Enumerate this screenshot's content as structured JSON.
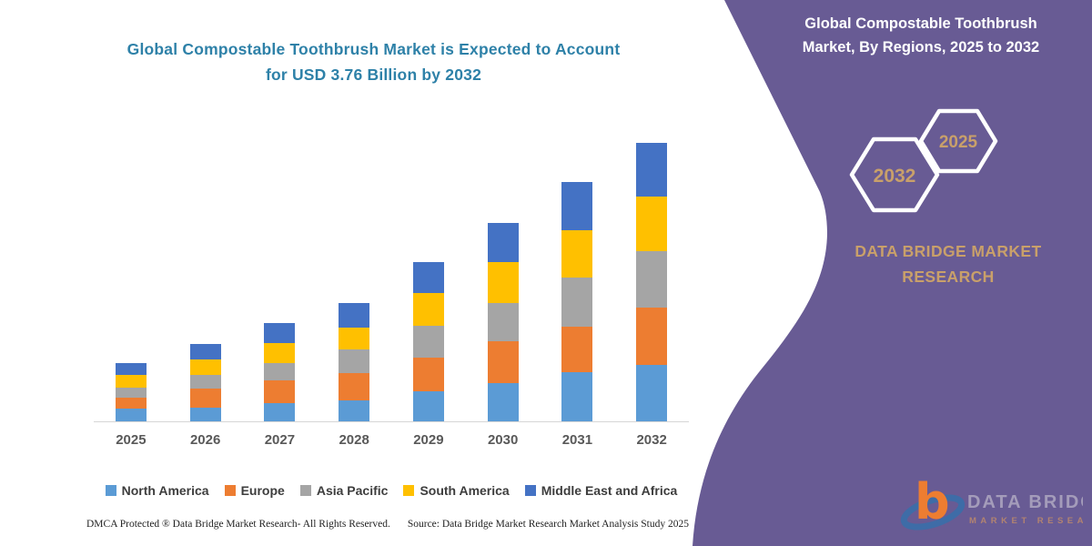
{
  "main_title": {
    "line1": "Global Compostable Toothbrush Market is Expected to Account",
    "line2": "for USD 3.76 Billion by 2032"
  },
  "chart_data": {
    "type": "bar",
    "stacked": true,
    "title": "Global Compostable Toothbrush Market, By Regions, 2025 to 2032",
    "unit": "USD Billion",
    "categories": [
      "2025",
      "2026",
      "2027",
      "2028",
      "2029",
      "2030",
      "2031",
      "2032"
    ],
    "series": [
      {
        "name": "North America",
        "color": "#5B9BD5",
        "values": [
          0.17,
          0.18,
          0.25,
          0.28,
          0.41,
          0.52,
          0.66,
          0.76
        ]
      },
      {
        "name": "Europe",
        "color": "#ED7D31",
        "values": [
          0.15,
          0.26,
          0.3,
          0.37,
          0.45,
          0.56,
          0.62,
          0.77
        ]
      },
      {
        "name": "Asia Pacific",
        "color": "#A5A5A5",
        "values": [
          0.13,
          0.19,
          0.24,
          0.32,
          0.43,
          0.51,
          0.66,
          0.76
        ]
      },
      {
        "name": "South America",
        "color": "#FFC000",
        "values": [
          0.18,
          0.2,
          0.26,
          0.29,
          0.44,
          0.56,
          0.64,
          0.74
        ]
      },
      {
        "name": "Middle East and Africa",
        "color": "#4472C4",
        "values": [
          0.16,
          0.21,
          0.28,
          0.34,
          0.42,
          0.53,
          0.65,
          0.73
        ]
      }
    ],
    "totals": [
      0.79,
      1.04,
      1.33,
      1.6,
      2.15,
      2.68,
      3.23,
      3.76
    ],
    "ylim": [
      0,
      3.76
    ],
    "grid": false,
    "legend_position": "bottom",
    "axis_line_color": "#d6d6d6"
  },
  "footer": {
    "left": "DMCA Protected ® Data Bridge Market Research-  All Rights Reserved.",
    "source": "Source: Data Bridge Market Research  Market Analysis Study 2025"
  },
  "side_panel": {
    "title_line1": "Global Compostable Toothbrush",
    "title_line2": "Market, By Regions, 2025 to 2032",
    "hexagon_back_label": "2032",
    "hexagon_front_label": "2025",
    "brand_line1": "DATA BRIDGE MARKET",
    "brand_line2": "RESEARCH",
    "colors": {
      "panel": "#685b94",
      "accent_text": "#c9a06a"
    }
  },
  "logo": {
    "mark": "b",
    "text_primary": "DATA BRIDGE",
    "text_secondary": "MARKET RESEARCH"
  }
}
